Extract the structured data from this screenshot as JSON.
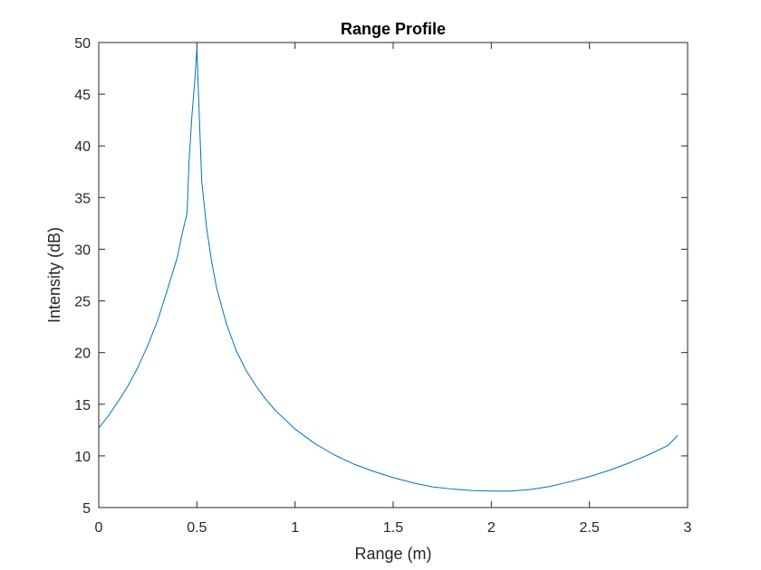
{
  "chart_data": {
    "type": "line",
    "title": "Range Profile",
    "xlabel": "Range (m)",
    "ylabel": "Intensity (dB)",
    "xlim": [
      0,
      3
    ],
    "ylim": [
      5,
      50
    ],
    "xticks": [
      0,
      0.5,
      1,
      1.5,
      2,
      2.5,
      3
    ],
    "xtick_labels": [
      "0",
      "0.5",
      "1",
      "1.5",
      "2",
      "2.5",
      "3"
    ],
    "yticks": [
      5,
      10,
      15,
      20,
      25,
      30,
      35,
      40,
      45,
      50
    ],
    "ytick_labels": [
      "5",
      "10",
      "15",
      "20",
      "25",
      "30",
      "35",
      "40",
      "45",
      "50"
    ],
    "grid": false,
    "series": [
      {
        "color": "#0072BD",
        "x": [
          0,
          0.05,
          0.1,
          0.15,
          0.2,
          0.25,
          0.3,
          0.35,
          0.4,
          0.425,
          0.45,
          0.46,
          0.475,
          0.49,
          0.5,
          0.51,
          0.525,
          0.55,
          0.575,
          0.6,
          0.65,
          0.7,
          0.75,
          0.8,
          0.85,
          0.9,
          1.0,
          1.1,
          1.2,
          1.3,
          1.4,
          1.5,
          1.6,
          1.7,
          1.8,
          1.9,
          2.0,
          2.1,
          2.2,
          2.3,
          2.4,
          2.5,
          2.6,
          2.7,
          2.8,
          2.9,
          2.95
        ],
        "y": [
          12.7,
          13.9,
          15.3,
          16.8,
          18.6,
          20.7,
          23.1,
          26.1,
          29.2,
          31.5,
          33.5,
          38.5,
          43.0,
          46.5,
          49.5,
          44.0,
          36.5,
          32.0,
          28.8,
          26.3,
          22.8,
          20.2,
          18.3,
          16.8,
          15.5,
          14.4,
          12.6,
          11.2,
          10.1,
          9.2,
          8.5,
          7.9,
          7.4,
          7.0,
          6.8,
          6.65,
          6.6,
          6.6,
          6.75,
          7.05,
          7.5,
          8.0,
          8.6,
          9.3,
          10.1,
          11.0,
          12.0
        ]
      }
    ]
  }
}
